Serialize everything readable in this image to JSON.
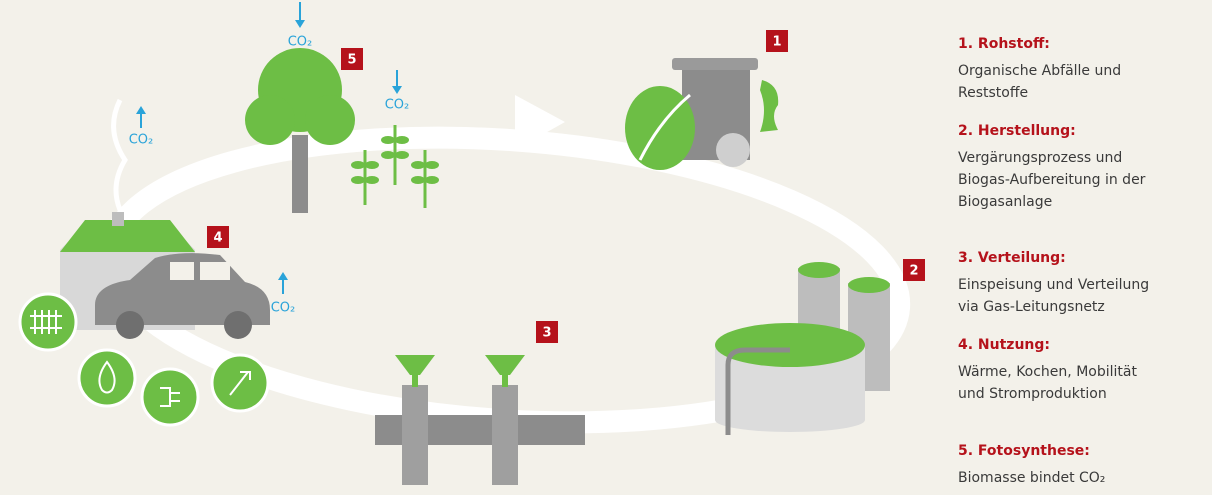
{
  "markers": [
    "1",
    "2",
    "3",
    "4",
    "5"
  ],
  "co2_labels": [
    "CO₂",
    "CO₂",
    "CO₂",
    "CO₂"
  ],
  "legend": [
    {
      "title": "1. Rohstoff:",
      "lines": [
        "Organische Abfälle und",
        "Reststoffe"
      ]
    },
    {
      "title": "2. Herstellung:",
      "lines": [
        "Vergärungsprozess und",
        "Biogas-Aufbereitung in der",
        "Biogasanlage"
      ]
    },
    {
      "title": "3. Verteilung:",
      "lines": [
        "Einspeisung und Verteilung",
        "via Gas-Leitungsnetz"
      ]
    },
    {
      "title": "4. Nutzung:",
      "lines": [
        "Wärme, Kochen, Mobilität",
        "und Stromproduktion"
      ]
    },
    {
      "title": "5. Fotosynthese:",
      "lines": [
        "Biomasse bindet CO₂"
      ]
    }
  ]
}
